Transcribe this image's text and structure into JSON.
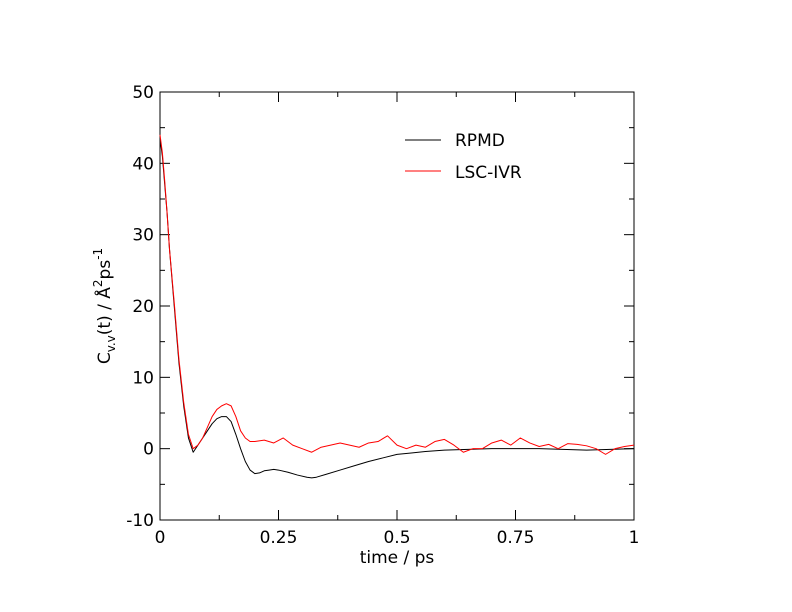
{
  "chart_data": {
    "type": "line",
    "title": "",
    "xlabel": "time / ps",
    "ylabel": {
      "base": "C",
      "sub": "v.v",
      "mid": "(t) / Å",
      "sup1": "2",
      "mid2": "ps",
      "sup2": "-1"
    },
    "xlim": [
      0,
      1
    ],
    "ylim": [
      -10,
      50
    ],
    "xticks": [
      0,
      0.25,
      0.5,
      0.75,
      1
    ],
    "xtick_labels": [
      "0",
      "0.25",
      "0.5",
      "0.75",
      "1"
    ],
    "yticks": [
      -10,
      0,
      10,
      20,
      30,
      40,
      50
    ],
    "ytick_labels": [
      "-10",
      "0",
      "10",
      "20",
      "30",
      "40",
      "50"
    ],
    "grid": false,
    "legend_position": "top-right",
    "series": [
      {
        "name": "RPMD",
        "color": "#000000",
        "x": [
          0,
          0.005,
          0.01,
          0.015,
          0.02,
          0.03,
          0.04,
          0.05,
          0.06,
          0.07,
          0.08,
          0.09,
          0.1,
          0.11,
          0.12,
          0.13,
          0.14,
          0.15,
          0.16,
          0.17,
          0.18,
          0.19,
          0.2,
          0.21,
          0.22,
          0.23,
          0.24,
          0.25,
          0.27,
          0.29,
          0.31,
          0.32,
          0.33,
          0.35,
          0.38,
          0.41,
          0.44,
          0.47,
          0.5,
          0.53,
          0.56,
          0.6,
          0.65,
          0.7,
          0.75,
          0.8,
          0.85,
          0.9,
          0.95,
          1.0
        ],
        "y": [
          43.5,
          41,
          37,
          33,
          28,
          20,
          12,
          6,
          1.5,
          -0.5,
          0.5,
          1.5,
          2.5,
          3.5,
          4.2,
          4.5,
          4.5,
          3.8,
          2,
          0,
          -1.8,
          -3,
          -3.5,
          -3.4,
          -3.1,
          -3,
          -2.9,
          -3,
          -3.3,
          -3.7,
          -4,
          -4.1,
          -4,
          -3.6,
          -3,
          -2.4,
          -1.8,
          -1.3,
          -0.8,
          -0.6,
          -0.4,
          -0.2,
          -0.1,
          0,
          0,
          0,
          -0.1,
          -0.2,
          -0.1,
          0
        ]
      },
      {
        "name": "LSC-IVR",
        "color": "#ff0000",
        "x": [
          0,
          0.005,
          0.01,
          0.015,
          0.02,
          0.03,
          0.04,
          0.05,
          0.06,
          0.07,
          0.08,
          0.09,
          0.1,
          0.11,
          0.12,
          0.13,
          0.14,
          0.15,
          0.16,
          0.17,
          0.18,
          0.19,
          0.2,
          0.22,
          0.24,
          0.26,
          0.28,
          0.3,
          0.32,
          0.34,
          0.36,
          0.38,
          0.4,
          0.42,
          0.44,
          0.46,
          0.48,
          0.5,
          0.52,
          0.54,
          0.56,
          0.58,
          0.6,
          0.62,
          0.64,
          0.66,
          0.68,
          0.7,
          0.72,
          0.74,
          0.76,
          0.78,
          0.8,
          0.82,
          0.84,
          0.86,
          0.88,
          0.9,
          0.92,
          0.94,
          0.96,
          0.98,
          1.0
        ],
        "y": [
          44,
          41.5,
          37.5,
          33,
          28,
          20.5,
          12.5,
          6.5,
          2,
          0,
          0.5,
          1.5,
          3,
          4.5,
          5.5,
          6,
          6.3,
          6,
          4.5,
          2.5,
          1.5,
          1,
          1,
          1.2,
          0.8,
          1.5,
          0.5,
          0,
          -0.5,
          0.2,
          0.5,
          0.8,
          0.5,
          0.2,
          0.8,
          1,
          1.8,
          0.5,
          0,
          0.5,
          0.2,
          1,
          1.3,
          0.5,
          -0.5,
          0,
          0,
          0.8,
          1.2,
          0.5,
          1.5,
          0.8,
          0.3,
          0.6,
          0,
          0.7,
          0.6,
          0.4,
          0,
          -0.8,
          0,
          0.3,
          0.5
        ]
      }
    ]
  }
}
